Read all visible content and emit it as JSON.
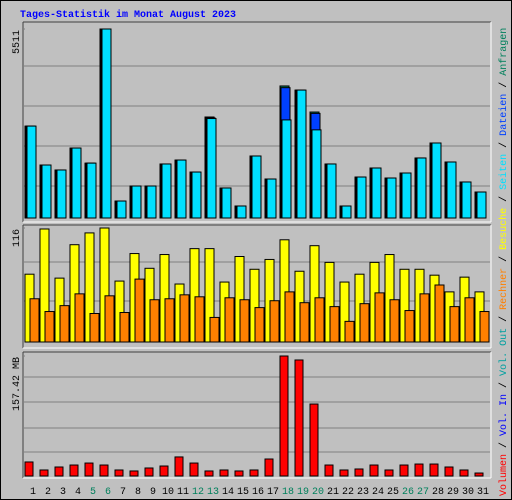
{
  "chart_data": [
    {
      "type": "bar",
      "title": "Tages-Statistik im Monat August 2023",
      "ylim": [
        0,
        5511
      ],
      "yticks": [
        5511
      ],
      "series": [
        {
          "name": "Seiten",
          "color": "#00e0ff",
          "values": [
            2680,
            1545,
            1400,
            2040,
            1600,
            5511,
            495,
            933,
            933,
            1575,
            1690,
            1340,
            2900,
            875,
            350,
            1808,
            1137,
            2860,
            3730,
            2570,
            1575,
            350,
            1195,
            1458,
            1166,
            1312,
            1750,
            2187,
            1633,
            1050,
            758
          ]
        },
        {
          "name": "Dateien",
          "color": "#0040ff",
          "values": [
            2680,
            1545,
            1400,
            2040,
            1600,
            5511,
            495,
            933,
            933,
            1575,
            1690,
            1340,
            2920,
            875,
            350,
            1808,
            1137,
            3800,
            3730,
            3050,
            1575,
            350,
            1195,
            1458,
            1166,
            1312,
            1750,
            2187,
            1633,
            1050,
            758
          ]
        },
        {
          "name": "Anfragen",
          "color": "#00805c",
          "values": [
            2680,
            1545,
            1400,
            2040,
            1600,
            5511,
            495,
            933,
            933,
            1575,
            1690,
            1340,
            2945,
            875,
            350,
            1808,
            1137,
            3850,
            3730,
            3090,
            1575,
            350,
            1195,
            1458,
            1166,
            1312,
            1750,
            2187,
            1633,
            1050,
            758
          ]
        }
      ]
    },
    {
      "type": "bar",
      "ylim": [
        0,
        116
      ],
      "yticks": [
        116
      ],
      "series": [
        {
          "name": "Rechner",
          "color": "#ff8000",
          "values": [
            44,
            31,
            37,
            49,
            29,
            47,
            30,
            64,
            43,
            44,
            48,
            46,
            25,
            45,
            43,
            35,
            42,
            51,
            40,
            45,
            36,
            21,
            39,
            50,
            43,
            32,
            49,
            58,
            36,
            45,
            31
          ]
        },
        {
          "name": "Besuche",
          "color": "#ffff00",
          "values": [
            69,
            115,
            65,
            99,
            111,
            116,
            62,
            90,
            75,
            89,
            59,
            95,
            95,
            61,
            87,
            74,
            84,
            104,
            72,
            98,
            81,
            61,
            69,
            81,
            89,
            74,
            74,
            68,
            51,
            66,
            51
          ]
        }
      ]
    },
    {
      "type": "bar",
      "ylim": [
        0,
        157.42
      ],
      "yticks": [
        {
          "value": 157.42,
          "label": "157.42 MB"
        }
      ],
      "categories": [
        "1",
        "2",
        "3",
        "4",
        "5",
        "6",
        "7",
        "8",
        "9",
        "10",
        "11",
        "12",
        "13",
        "14",
        "15",
        "16",
        "17",
        "18",
        "19",
        "20",
        "21",
        "22",
        "23",
        "24",
        "25",
        "26",
        "27",
        "28",
        "29",
        "30",
        "31"
      ],
      "category_colors": [
        "#000000",
        "#000000",
        "#000000",
        "#000000",
        "#00805c",
        "#00805c",
        "#000000",
        "#000000",
        "#000000",
        "#000000",
        "#000000",
        "#00805c",
        "#00805c",
        "#000000",
        "#000000",
        "#000000",
        "#000000",
        "#00805c",
        "#00805c",
        "#00805c",
        "#000000",
        "#000000",
        "#000000",
        "#000000",
        "#000000",
        "#00805c",
        "#00805c",
        "#000000",
        "#000000",
        "#000000",
        "#000000"
      ],
      "series": [
        {
          "name": "Volumen",
          "color": "#ff0000",
          "values": [
            18.4,
            7.9,
            11.8,
            14.4,
            17,
            14.4,
            7.9,
            6.6,
            10.5,
            13.1,
            25,
            17,
            6.6,
            7.9,
            6.6,
            7.9,
            22.3,
            157.42,
            152.2,
            94.4,
            14.4,
            7.9,
            9.2,
            14.4,
            7.9,
            14.4,
            15.7,
            15.7,
            11.8,
            7.9,
            3.9
          ]
        },
        {
          "name": "Vol. In",
          "color": "#0000ff",
          "values": [
            0,
            0,
            0,
            0,
            0,
            0,
            0,
            0,
            0,
            0,
            0,
            0,
            0,
            0,
            0,
            0,
            0,
            0,
            0,
            0,
            0,
            0,
            0,
            0,
            0,
            0,
            0,
            0,
            0,
            0,
            0
          ]
        },
        {
          "name": "Vol. Out",
          "color": "#00a0a0",
          "values": [
            0,
            0,
            0,
            0,
            0,
            0,
            0,
            0,
            0,
            0,
            0,
            0,
            0,
            0,
            0,
            0,
            0,
            0,
            0,
            0,
            0,
            0,
            0,
            0,
            0,
            0,
            0,
            0,
            0,
            0,
            0
          ]
        }
      ]
    }
  ],
  "legend_separator": " / "
}
